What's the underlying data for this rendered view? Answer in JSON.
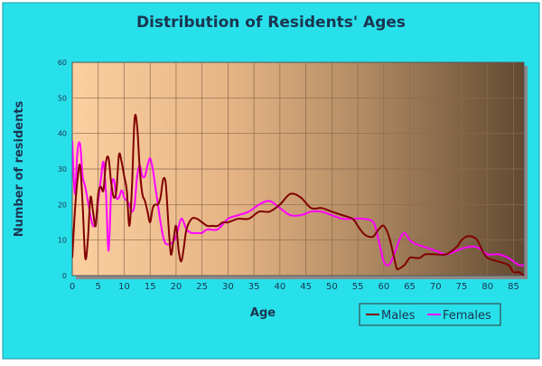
{
  "chart_data": {
    "type": "line",
    "title": "Distribution of Residents' Ages",
    "xlabel": "Age",
    "ylabel": "Number of residents",
    "xlim": [
      0,
      87
    ],
    "ylim": [
      0,
      60
    ],
    "x_ticks": [
      0,
      5,
      10,
      15,
      20,
      25,
      30,
      35,
      40,
      45,
      50,
      55,
      60,
      65,
      70,
      75,
      80,
      85
    ],
    "y_ticks": [
      0,
      10,
      20,
      30,
      40,
      50,
      60
    ],
    "grid": true,
    "legend_position": "bottom-right",
    "series": [
      {
        "name": "Males",
        "color": "#800000",
        "points": [
          [
            0,
            5
          ],
          [
            0.5,
            18
          ],
          [
            1,
            27
          ],
          [
            1.5,
            31
          ],
          [
            2,
            20
          ],
          [
            2.5,
            5
          ],
          [
            3,
            10
          ],
          [
            3.5,
            22
          ],
          [
            4,
            18
          ],
          [
            4.5,
            14
          ],
          [
            5,
            23
          ],
          [
            5.5,
            25
          ],
          [
            6,
            24
          ],
          [
            6.5,
            32
          ],
          [
            7,
            33
          ],
          [
            7.5,
            26
          ],
          [
            8,
            22
          ],
          [
            8.5,
            24
          ],
          [
            9,
            34
          ],
          [
            9.5,
            32
          ],
          [
            10,
            28
          ],
          [
            10.5,
            24
          ],
          [
            11,
            14
          ],
          [
            11.5,
            25
          ],
          [
            12,
            44
          ],
          [
            12.5,
            42
          ],
          [
            13,
            30
          ],
          [
            13.5,
            23
          ],
          [
            14,
            21
          ],
          [
            14.5,
            18
          ],
          [
            15,
            15
          ],
          [
            15.5,
            19
          ],
          [
            16,
            20
          ],
          [
            16.5,
            20
          ],
          [
            17,
            22
          ],
          [
            17.5,
            27
          ],
          [
            18,
            26
          ],
          [
            18.5,
            15
          ],
          [
            19,
            6
          ],
          [
            19.5,
            10
          ],
          [
            20,
            14
          ],
          [
            20.5,
            7
          ],
          [
            21,
            4
          ],
          [
            21.5,
            8
          ],
          [
            22,
            13
          ],
          [
            23,
            16
          ],
          [
            24,
            16
          ],
          [
            25,
            15
          ],
          [
            26,
            14
          ],
          [
            27,
            14
          ],
          [
            28,
            14
          ],
          [
            29,
            15
          ],
          [
            30,
            15
          ],
          [
            32,
            16
          ],
          [
            34,
            16
          ],
          [
            36,
            18
          ],
          [
            38,
            18
          ],
          [
            40,
            20
          ],
          [
            42,
            23
          ],
          [
            44,
            22
          ],
          [
            46,
            19
          ],
          [
            48,
            19
          ],
          [
            50,
            18
          ],
          [
            52,
            17
          ],
          [
            54,
            16
          ],
          [
            55,
            14
          ],
          [
            56,
            12
          ],
          [
            57,
            11
          ],
          [
            58,
            11
          ],
          [
            59,
            13
          ],
          [
            60,
            14
          ],
          [
            61,
            11
          ],
          [
            62,
            5
          ],
          [
            62.5,
            2
          ],
          [
            63,
            2
          ],
          [
            64,
            3
          ],
          [
            65,
            5
          ],
          [
            66,
            5
          ],
          [
            67,
            5
          ],
          [
            68,
            6
          ],
          [
            70,
            6
          ],
          [
            72,
            6
          ],
          [
            74,
            8
          ],
          [
            75,
            10
          ],
          [
            76,
            11
          ],
          [
            77,
            11
          ],
          [
            78,
            10
          ],
          [
            79,
            7
          ],
          [
            80,
            5
          ],
          [
            82,
            4
          ],
          [
            84,
            3
          ],
          [
            85,
            1
          ],
          [
            86,
            1
          ],
          [
            87,
            0
          ]
        ]
      },
      {
        "name": "Females",
        "color": "#ff00ff",
        "points": [
          [
            0,
            38
          ],
          [
            0.5,
            23
          ],
          [
            1,
            35
          ],
          [
            1.5,
            37
          ],
          [
            2,
            28
          ],
          [
            2.5,
            25
          ],
          [
            3,
            21
          ],
          [
            3.5,
            17
          ],
          [
            4,
            14
          ],
          [
            4.5,
            15
          ],
          [
            5,
            21
          ],
          [
            5.5,
            27
          ],
          [
            6,
            32
          ],
          [
            6.5,
            23
          ],
          [
            7,
            7
          ],
          [
            7.5,
            24
          ],
          [
            8,
            27
          ],
          [
            8.5,
            22
          ],
          [
            9,
            22
          ],
          [
            9.5,
            24
          ],
          [
            10,
            22
          ],
          [
            10.5,
            21
          ],
          [
            11,
            20
          ],
          [
            11.5,
            18
          ],
          [
            12,
            20
          ],
          [
            12.5,
            28
          ],
          [
            13,
            31
          ],
          [
            13.5,
            28
          ],
          [
            14,
            28
          ],
          [
            14.5,
            31
          ],
          [
            15,
            33
          ],
          [
            15.5,
            30
          ],
          [
            16,
            25
          ],
          [
            16.5,
            20
          ],
          [
            17,
            15
          ],
          [
            17.5,
            11
          ],
          [
            18,
            9
          ],
          [
            19,
            9
          ],
          [
            20,
            11
          ],
          [
            21,
            16
          ],
          [
            22,
            13
          ],
          [
            23,
            12
          ],
          [
            24,
            12
          ],
          [
            25,
            12
          ],
          [
            26,
            13
          ],
          [
            28,
            13
          ],
          [
            30,
            16
          ],
          [
            32,
            17
          ],
          [
            34,
            18
          ],
          [
            36,
            20
          ],
          [
            38,
            21
          ],
          [
            40,
            19
          ],
          [
            42,
            17
          ],
          [
            44,
            17
          ],
          [
            46,
            18
          ],
          [
            48,
            18
          ],
          [
            50,
            17
          ],
          [
            52,
            16
          ],
          [
            54,
            16
          ],
          [
            56,
            16
          ],
          [
            58,
            15
          ],
          [
            59,
            10
          ],
          [
            60,
            4
          ],
          [
            61,
            3
          ],
          [
            62,
            6
          ],
          [
            63,
            10
          ],
          [
            64,
            12
          ],
          [
            65,
            10
          ],
          [
            66,
            9
          ],
          [
            68,
            8
          ],
          [
            70,
            7
          ],
          [
            72,
            6
          ],
          [
            74,
            7
          ],
          [
            76,
            8
          ],
          [
            78,
            8
          ],
          [
            80,
            6
          ],
          [
            82,
            6
          ],
          [
            84,
            5
          ],
          [
            86,
            3
          ],
          [
            87,
            3
          ]
        ]
      }
    ]
  }
}
